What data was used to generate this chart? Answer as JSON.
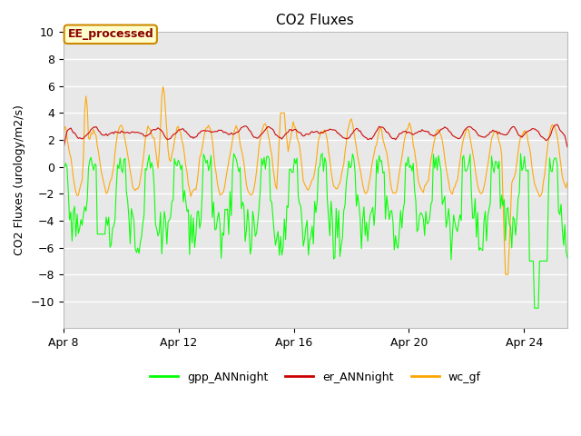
{
  "title": "CO2 Fluxes",
  "ylabel": "CO2 Fluxes (urology/m2/s)",
  "ylim": [
    -12,
    10
  ],
  "yticks": [
    -10,
    -8,
    -6,
    -4,
    -2,
    0,
    2,
    4,
    6,
    8,
    10
  ],
  "xtick_labels": [
    "Apr 8",
    "Apr 12",
    "Apr 16",
    "Apr 20",
    "Apr 24"
  ],
  "xtick_positions": [
    0,
    4,
    8,
    12,
    16
  ],
  "xlim": [
    0,
    17.5
  ],
  "annotation_text": "EE_processed",
  "annotation_box_color": "#FFFFCC",
  "annotation_border_color": "#CC8800",
  "annotation_text_color": "#8B0000",
  "line_colors": {
    "gpp_ANNnight": "#00FF00",
    "er_ANNnight": "#CC0000",
    "wc_gf": "#FFA500"
  },
  "legend_labels": [
    "gpp_ANNnight",
    "er_ANNnight",
    "wc_gf"
  ],
  "background_color": "#FFFFFF",
  "plot_bg_color": "#E8E8E8",
  "grid_color": "#FFFFFF",
  "n_points": 400,
  "seed": 7
}
